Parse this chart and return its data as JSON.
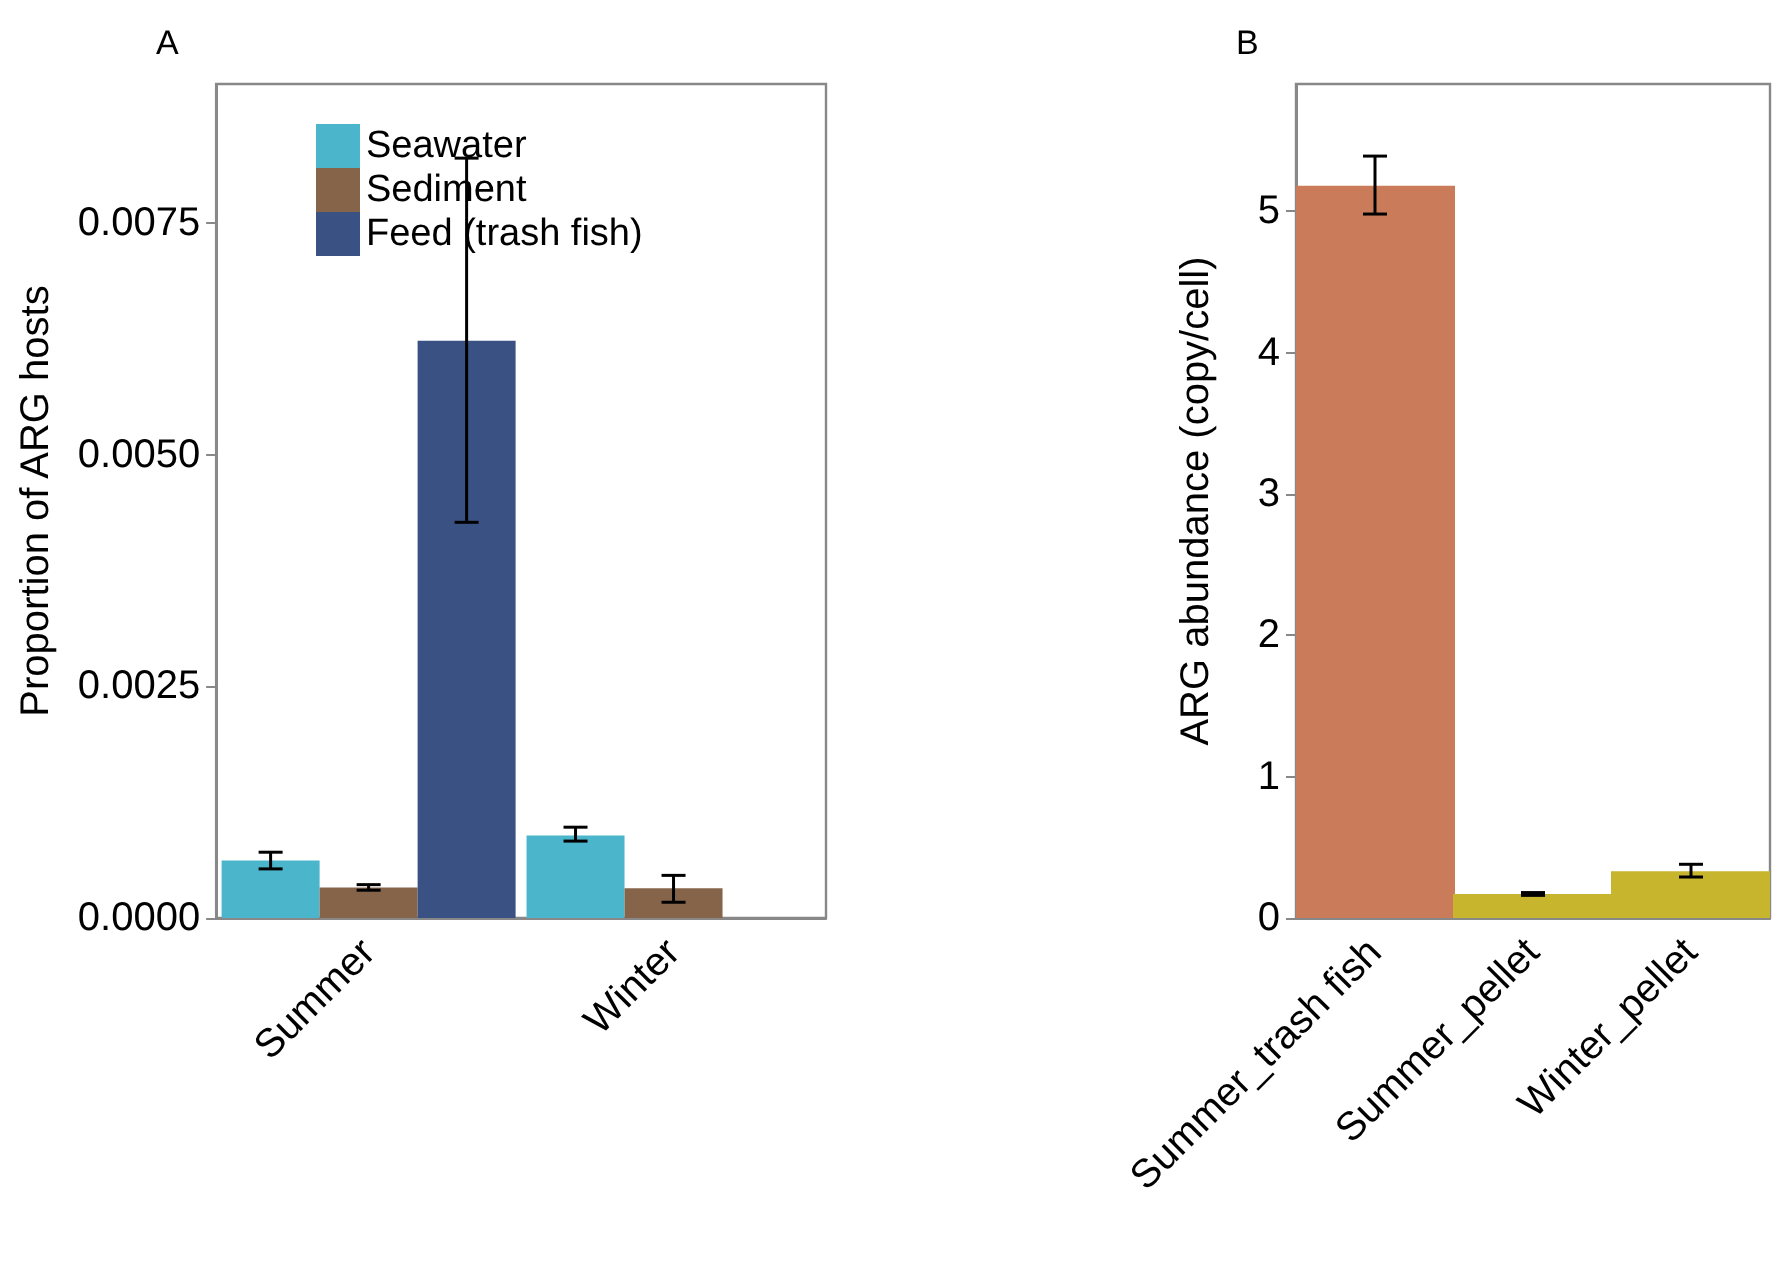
{
  "chart_data": [
    {
      "type": "bar",
      "title": "A",
      "ylabel": "Proportion of ARG hosts",
      "categories": [
        "Summer",
        "Winter"
      ],
      "series": [
        {
          "name": "Seawater",
          "color": "#4bb5cc",
          "values": [
            0.00062,
            0.00089
          ],
          "errors": [
            [
              0.00053,
              0.00071
            ],
            [
              0.00083,
              0.00098
            ]
          ]
        },
        {
          "name": "Sediment",
          "color": "#86644a",
          "values": [
            0.00033,
            0.00032
          ],
          "errors": [
            [
              0.0003,
              0.00036
            ],
            [
              0.00017,
              0.00046
            ]
          ]
        },
        {
          "name": "Feed (trash fish)",
          "color": "#3a5283",
          "values": [
            0.00623,
            null
          ],
          "errors": [
            [
              0.00427,
              0.0082
            ],
            null
          ]
        }
      ],
      "ylim": [
        0,
        0.009
      ],
      "yticks": [
        {
          "value": 0,
          "label": "0.0000"
        },
        {
          "value": 0.0025,
          "label": "0.0025"
        },
        {
          "value": 0.005,
          "label": "0.0050"
        },
        {
          "value": 0.0075,
          "label": "0.0075"
        }
      ],
      "grid": false,
      "legend": "top left"
    },
    {
      "type": "bar",
      "title": "B",
      "ylabel": "ARG abundance (copy/cell)",
      "categories": [
        "Summer_trash fish",
        "Summer_pellet",
        "Winter_pellet"
      ],
      "values": [
        5.18,
        0.17,
        0.33
      ],
      "colors": [
        "#c97b5a",
        "#c8b52e",
        "#c8b52e"
      ],
      "errors": [
        [
          4.98,
          5.39
        ],
        [
          0.16,
          0.18
        ],
        [
          0.29,
          0.38
        ]
      ],
      "ylim": [
        0,
        5.9
      ],
      "yticks": [
        0,
        1,
        2,
        3,
        4,
        5
      ],
      "grid": false
    }
  ]
}
